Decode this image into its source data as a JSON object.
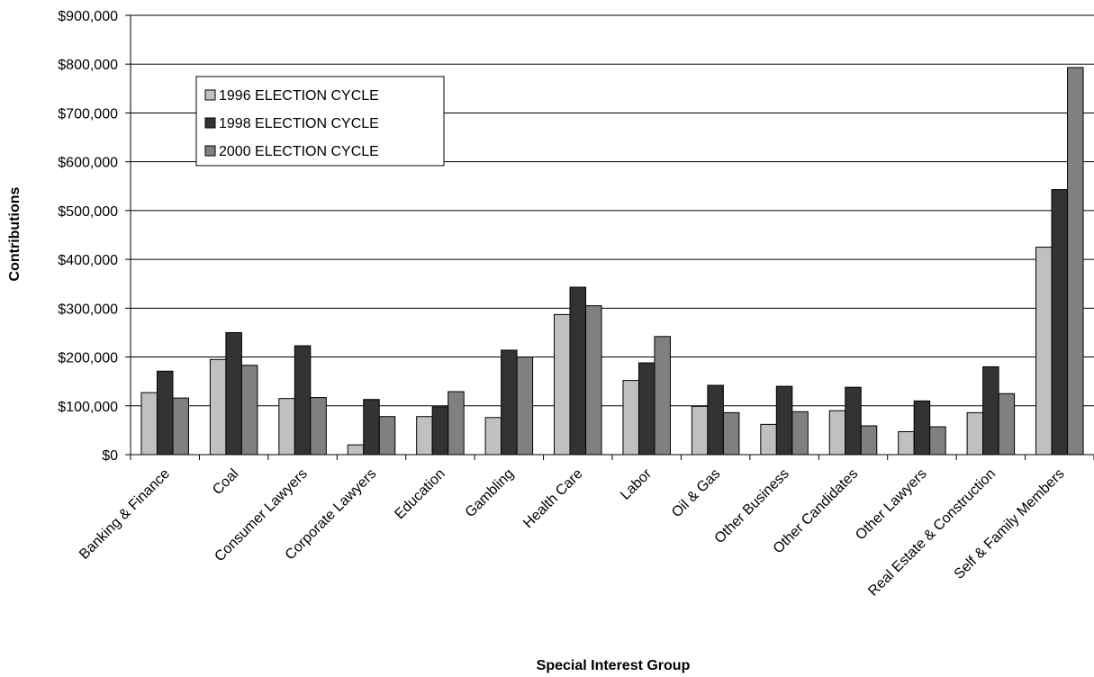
{
  "chart_data": {
    "type": "bar",
    "title": "",
    "xlabel": "Special Interest Group",
    "ylabel": "Contributions",
    "ylim": [
      0,
      900000
    ],
    "yticks": [
      0,
      100000,
      200000,
      300000,
      400000,
      500000,
      600000,
      700000,
      800000,
      900000
    ],
    "ytick_labels": [
      "$0",
      "$100,000",
      "$200,000",
      "$300,000",
      "$400,000",
      "$500,000",
      "$600,000",
      "$700,000",
      "$800,000",
      "$900,000"
    ],
    "grid": true,
    "legend_position": "top-left",
    "categories": [
      "Banking & Finance",
      "Coal",
      "Consumer Lawyers",
      "Corporate Lawyers",
      "Education",
      "Gambling",
      "Health Care",
      "Labor",
      "Oil & Gas",
      "Other Business",
      "Other Candidates",
      "Other Lawyers",
      "Real Estate & Construction",
      "Self & Family Members"
    ],
    "series": [
      {
        "name": "1996 ELECTION CYCLE",
        "color": "#c0c0c0",
        "values": [
          127000,
          195000,
          115000,
          20000,
          78000,
          76000,
          287000,
          152000,
          99000,
          62000,
          90000,
          47000,
          86000,
          425000
        ]
      },
      {
        "name": "1998 ELECTION CYCLE",
        "color": "#333333",
        "values": [
          171000,
          250000,
          223000,
          113000,
          98000,
          214000,
          343000,
          188000,
          142000,
          140000,
          138000,
          110000,
          180000,
          543000
        ]
      },
      {
        "name": "2000 ELECTION CYCLE",
        "color": "#808080",
        "values": [
          116000,
          183000,
          117000,
          78000,
          129000,
          200000,
          305000,
          242000,
          86000,
          88000,
          59000,
          57000,
          125000,
          793000
        ]
      }
    ]
  }
}
